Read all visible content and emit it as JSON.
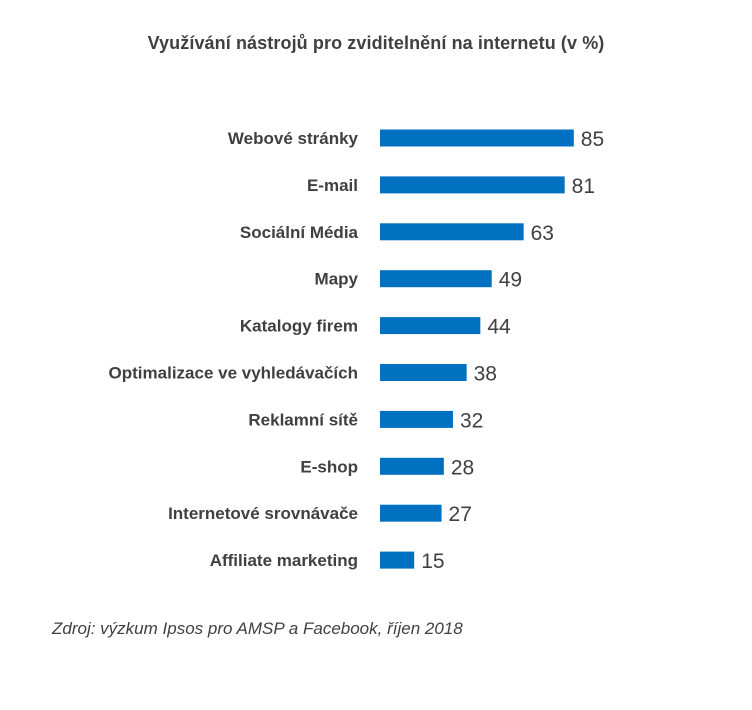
{
  "title": "Využívání nástrojů pro zviditelnění na internetu (v %)",
  "source": "Zdroj: výzkum Ipsos pro AMSP a Facebook, říjen 2018",
  "chart_data": {
    "type": "bar",
    "orientation": "horizontal",
    "title": "Využívání nástrojů pro zviditelnění na internetu (v %)",
    "categories": [
      "Webové stránky",
      "E-mail",
      "Sociální Média",
      "Mapy",
      "Katalogy firem",
      "Optimalizace ve vyhledávačích",
      "Reklamní sítě",
      "E-shop",
      "Internetové srovnávače",
      "Affiliate marketing"
    ],
    "values": [
      85,
      81,
      63,
      49,
      44,
      38,
      32,
      28,
      27,
      15
    ],
    "xlim": [
      0,
      100
    ],
    "grid": false,
    "legend": "none",
    "data_labels": true,
    "bar_color": "#0070C0",
    "label_color": "#404040"
  }
}
